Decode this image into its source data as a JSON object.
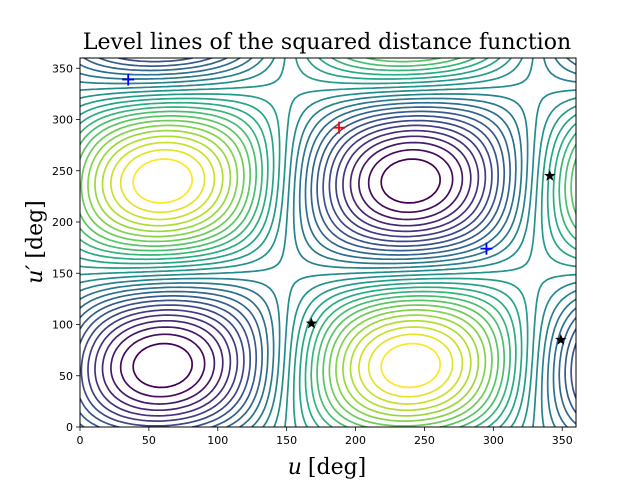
{
  "chart_data": {
    "type": "contour",
    "title": "Level lines of the squared distance function",
    "xlabel_var": "u",
    "xlabel_unit": "[deg]",
    "ylabel_var": "u′",
    "ylabel_unit": "[deg]",
    "xlim": [
      0,
      360
    ],
    "ylim": [
      0,
      360
    ],
    "x_ticks": [
      0,
      50,
      100,
      150,
      200,
      250,
      300,
      350
    ],
    "y_ticks": [
      0,
      50,
      100,
      150,
      200,
      250,
      300,
      350
    ],
    "grid": false,
    "colormap": "viridis",
    "levels": 28,
    "markers": [
      {
        "type": "plus",
        "color": "#ff0000",
        "x": 188,
        "y": 292
      },
      {
        "type": "plus",
        "color": "#0000ff",
        "x": 35,
        "y": 339
      },
      {
        "type": "plus",
        "color": "#0000ff",
        "x": 295,
        "y": 174
      },
      {
        "type": "star",
        "color": "#000000",
        "x": 168,
        "y": 101
      },
      {
        "type": "star",
        "color": "#000000",
        "x": 341,
        "y": 245
      },
      {
        "type": "star",
        "color": "#000000",
        "x": 349,
        "y": 85
      }
    ]
  }
}
